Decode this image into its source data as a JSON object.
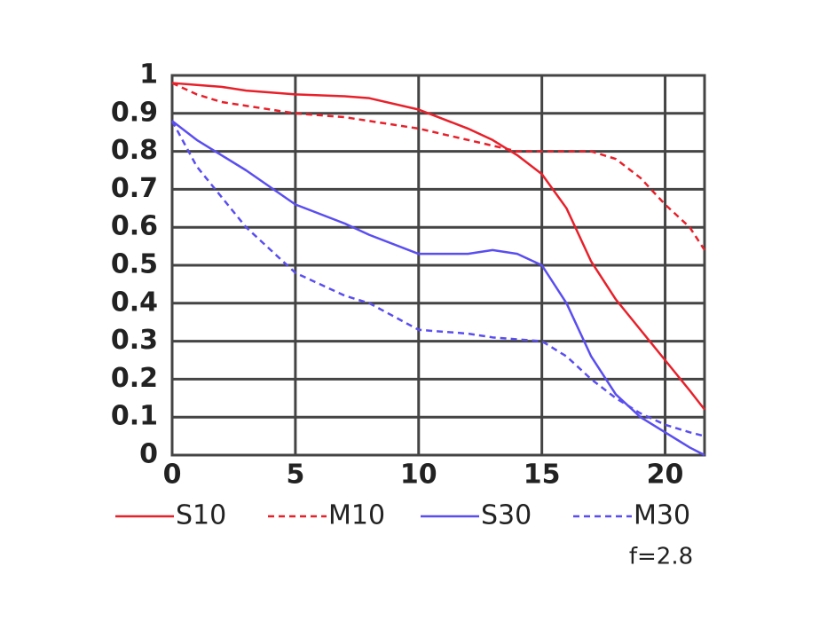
{
  "chart_data": {
    "type": "line",
    "x": [
      0,
      1,
      2,
      3,
      5,
      7,
      8,
      10,
      12,
      13,
      14,
      15,
      16,
      17,
      18,
      19,
      20,
      21,
      21.6
    ],
    "series": [
      {
        "name": "S10",
        "color": "#e8202a",
        "dash": false,
        "values": [
          0.98,
          0.975,
          0.97,
          0.96,
          0.95,
          0.945,
          0.94,
          0.91,
          0.86,
          0.83,
          0.79,
          0.74,
          0.65,
          0.51,
          0.41,
          0.33,
          0.25,
          0.17,
          0.12
        ]
      },
      {
        "name": "M10",
        "color": "#e8202a",
        "dash": true,
        "values": [
          0.98,
          0.95,
          0.93,
          0.92,
          0.9,
          0.89,
          0.88,
          0.86,
          0.83,
          0.815,
          0.8,
          0.8,
          0.8,
          0.8,
          0.78,
          0.73,
          0.66,
          0.6,
          0.54
        ]
      },
      {
        "name": "S30",
        "color": "#5a4ef0",
        "dash": false,
        "values": [
          0.88,
          0.83,
          0.79,
          0.75,
          0.66,
          0.61,
          0.58,
          0.53,
          0.53,
          0.54,
          0.53,
          0.5,
          0.4,
          0.26,
          0.16,
          0.1,
          0.06,
          0.02,
          0.0
        ]
      },
      {
        "name": "M30",
        "color": "#5a4ef0",
        "dash": true,
        "values": [
          0.88,
          0.76,
          0.68,
          0.6,
          0.48,
          0.42,
          0.4,
          0.33,
          0.32,
          0.31,
          0.305,
          0.3,
          0.26,
          0.2,
          0.15,
          0.11,
          0.08,
          0.06,
          0.05
        ]
      }
    ],
    "xlim": [
      0,
      21.6
    ],
    "xticks": [
      0,
      5,
      10,
      15,
      20
    ],
    "ylim": [
      0,
      1
    ],
    "yticks": [
      0,
      0.1,
      0.2,
      0.3,
      0.4,
      0.5,
      0.6,
      0.7,
      0.8,
      0.9,
      1
    ],
    "grid": true,
    "annotation": "f=2.8"
  }
}
